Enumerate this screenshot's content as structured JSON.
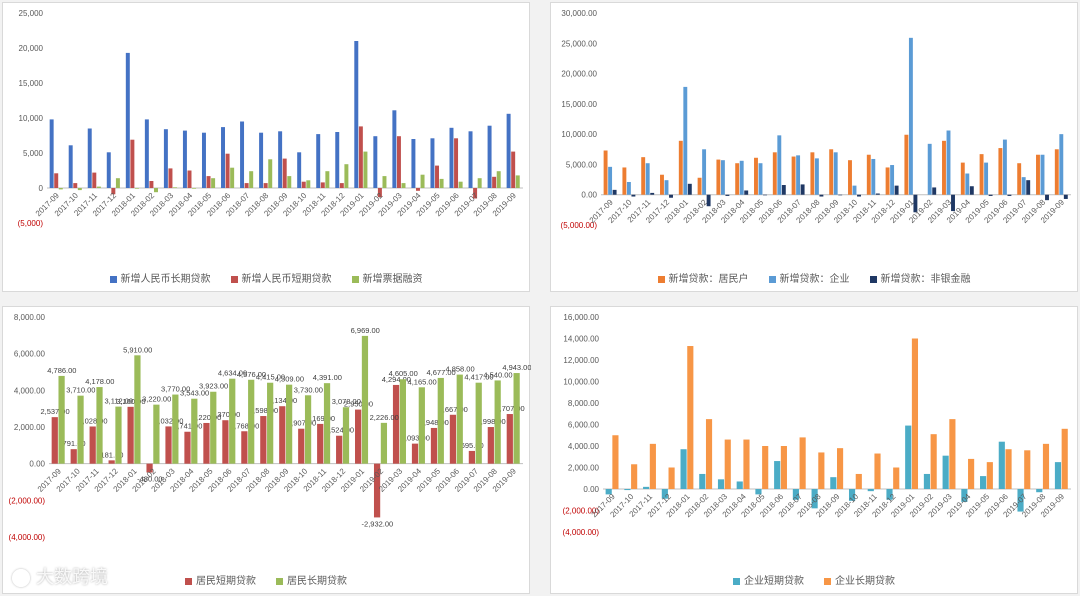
{
  "months": [
    "2017-09",
    "2017-10",
    "2017-11",
    "2017-12",
    "2018-01",
    "2018-02",
    "2018-03",
    "2018-04",
    "2018-05",
    "2018-06",
    "2018-07",
    "2018-08",
    "2018-09",
    "2018-10",
    "2018-11",
    "2018-12",
    "2019-01",
    "2019-02",
    "2019-03",
    "2019-04",
    "2019-05",
    "2019-06",
    "2019-07",
    "2019-08",
    "2019-09"
  ],
  "watermark": "大数跨境",
  "chart_data": [
    {
      "type": "bar",
      "ylim": [
        -5000,
        25000
      ],
      "yticks": [
        -5000,
        0,
        5000,
        10000,
        15000,
        20000,
        25000
      ],
      "ytick_labels": [
        "(5,000)",
        "0",
        "5,000",
        "10,000",
        "15,000",
        "20,000",
        "25,000"
      ],
      "series": [
        {
          "name": "新增人民币长期贷款",
          "color": "#4472c4",
          "values": [
            9800,
            6100,
            8500,
            5100,
            19300,
            9800,
            8400,
            8200,
            7900,
            8700,
            9500,
            7900,
            8100,
            5100,
            7700,
            8000,
            21000,
            7400,
            11100,
            7000,
            7100,
            8600,
            8100,
            8900,
            10600
          ]
        },
        {
          "name": "新增人民币短期贷款",
          "color": "#c0504d",
          "values": [
            2100,
            700,
            2200,
            -900,
            6900,
            1000,
            2800,
            2500,
            1700,
            4900,
            700,
            700,
            4200,
            900,
            800,
            700,
            8800,
            -1300,
            7400,
            -400,
            3200,
            7100,
            -1500,
            1600,
            5200
          ]
        },
        {
          "name": "新增票据融资",
          "color": "#9bbb59",
          "values": [
            -200,
            -300,
            200,
            1400,
            -100,
            -600,
            100,
            -100,
            1400,
            2900,
            2400,
            4100,
            1700,
            1100,
            2400,
            3400,
            5200,
            1700,
            700,
            1900,
            1300,
            900,
            1400,
            2400,
            1800
          ]
        }
      ]
    },
    {
      "type": "bar",
      "ylim": [
        -5000,
        30000
      ],
      "yticks": [
        -5000,
        0,
        5000,
        10000,
        15000,
        20000,
        25000,
        30000
      ],
      "ytick_labels": [
        "(5,000.00)",
        "0.00",
        "5,000.00",
        "10,000.00",
        "15,000.00",
        "20,000.00",
        "25,000.00",
        "30,000.00"
      ],
      "series": [
        {
          "name": "新增贷款：居民户",
          "color": "#ed7d31",
          "values": [
            7300,
            4500,
            6200,
            3300,
            8900,
            2800,
            5800,
            5200,
            6100,
            7000,
            6300,
            7000,
            7500,
            5700,
            6600,
            4500,
            9900,
            0,
            8900,
            5300,
            6700,
            7700,
            5200,
            6600,
            7500
          ]
        },
        {
          "name": "新增贷款：企业",
          "color": "#5b9bd5",
          "values": [
            4600,
            2100,
            5200,
            2400,
            17800,
            7500,
            5700,
            5600,
            5200,
            9800,
            6500,
            6000,
            7000,
            1500,
            5900,
            4900,
            25900,
            8400,
            10600,
            3500,
            5300,
            9100,
            2900,
            6600,
            10000
          ]
        },
        {
          "name": "新增贷款：非银金融",
          "color": "#1f3864",
          "values": [
            800,
            -300,
            300,
            -500,
            1800,
            -1900,
            -200,
            700,
            -100,
            1600,
            1700,
            -300,
            -100,
            -300,
            200,
            1500,
            -2900,
            1200,
            -2700,
            1400,
            -200,
            -200,
            2400,
            -900,
            -700
          ]
        }
      ]
    },
    {
      "type": "bar",
      "ylim": [
        -4000,
        8000
      ],
      "yticks": [
        -4000,
        -2000,
        0,
        2000,
        4000,
        6000,
        8000
      ],
      "ytick_labels": [
        "(4,000.00)",
        "(2,000.00)",
        "0.00",
        "2,000.00",
        "4,000.00",
        "6,000.00",
        "8,000.00"
      ],
      "series": [
        {
          "name": "居民短期贷款",
          "color": "#c0504d",
          "values": [
            2537,
            791,
            2028,
            181,
            3100,
            -480,
            2032,
            1741,
            2220,
            2370,
            1768,
            2598,
            3134,
            1907,
            2169,
            1524,
            2950,
            -2932,
            4294,
            1093,
            1948,
            2667,
            695,
            1998,
            2707
          ],
          "labels": [
            "2,537.00",
            "791.00",
            "2,028.00",
            "181.00",
            "3,100.00",
            "-480.00",
            "2,032.00",
            "1,741.00",
            "2,220.00",
            "2,370.00",
            "1,768.00",
            "2,598.00",
            "3,134.00",
            "1,907.00",
            "2,169.00",
            "1,524.00",
            "2,950.00",
            "-2,932.00",
            "4,294.00",
            "1,093.00",
            "1,948.00",
            "2,667.00",
            "695.00",
            "1,998.00",
            "2,707.00"
          ]
        },
        {
          "name": "居民长期贷款",
          "color": "#9bbb59",
          "values": [
            4786,
            3710,
            4178,
            3112,
            5910,
            3220,
            3770,
            3543,
            3923,
            4634,
            4576,
            4415,
            4309,
            3730,
            4391,
            3078,
            6969,
            2226,
            4605,
            4165,
            4677,
            4858,
            4417,
            4540,
            4943
          ],
          "labels": [
            "4,786.00",
            "3,710.00",
            "4,178.00",
            "3,112.00",
            "5,910.00",
            "3,220.00",
            "3,770.00",
            "3,543.00",
            "3,923.00",
            "4,634.00",
            "4,576.00",
            "4,415.00",
            "4,309.00",
            "3,730.00",
            "4,391.00",
            "3,078.00",
            "6,969.00",
            "2,226.00",
            "4,605.00",
            "4,165.00",
            "4,677.00",
            "4,858.00",
            "4,417.00",
            "4,540.00",
            "4,943.00"
          ]
        }
      ]
    },
    {
      "type": "bar",
      "ylim": [
        -4000,
        16000
      ],
      "yticks": [
        -4000,
        -2000,
        0,
        2000,
        4000,
        6000,
        8000,
        10000,
        12000,
        14000,
        16000
      ],
      "ytick_labels": [
        "(4,000.00)",
        "(2,000.00)",
        "0.00",
        "2,000.00",
        "4,000.00",
        "6,000.00",
        "8,000.00",
        "10,000.00",
        "12,000.00",
        "14,000.00",
        "16,000.00"
      ],
      "series": [
        {
          "name": "企业短期贷款",
          "color": "#4bacc6",
          "values": [
            -500,
            -100,
            200,
            -900,
            3700,
            1400,
            900,
            700,
            -500,
            2600,
            -1000,
            -1800,
            1100,
            -1100,
            -200,
            -1000,
            5900,
            1400,
            3100,
            -1200,
            1200,
            4400,
            -2100,
            -300,
            2500
          ]
        },
        {
          "name": "企业长期贷款",
          "color": "#f79646",
          "values": [
            5000,
            2300,
            4200,
            2000,
            13300,
            6500,
            4600,
            4600,
            4000,
            4000,
            4800,
            3400,
            3800,
            1400,
            3300,
            2000,
            14000,
            5100,
            6500,
            2800,
            2500,
            3700,
            3600,
            4200,
            5600
          ]
        }
      ]
    }
  ]
}
